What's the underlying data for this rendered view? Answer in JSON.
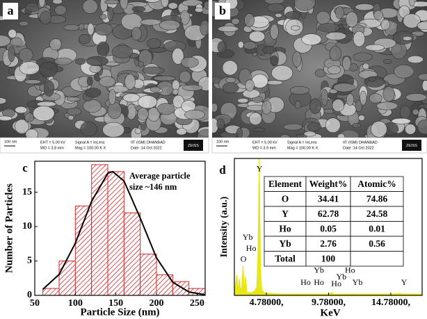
{
  "panels": [
    {
      "label": "a",
      "scale_bar": "100 nm",
      "info": [
        "EHT = 5.00 kV",
        "WD = 3.8 mm",
        "Signal A = InLens",
        "Mag = 100.00 K X",
        "IIT (ISM) DHANBAD",
        "Date :14 Oct 2022"
      ],
      "logo": "ZEISS"
    },
    {
      "label": "b",
      "scale_bar": "100 nm",
      "info": [
        "EHT = 5.00 kV",
        "WD = 3.9 mm",
        "Signal A = InLens",
        "Mag = 100.00 K X",
        "IIT (ISM) DHANBAD",
        "Date :14 Oct 2022"
      ],
      "logo": "ZEISS"
    }
  ],
  "chart_data": [
    {
      "type": "histogram",
      "label": "c",
      "xlabel": "Particle Size (nm)",
      "ylabel": "Number of Particles",
      "bins": [
        60,
        80,
        100,
        120,
        140,
        160,
        180,
        200,
        220,
        240,
        260
      ],
      "values": [
        1,
        5,
        13,
        19,
        18,
        12,
        6,
        3,
        2,
        1
      ],
      "color": "#d62728",
      "fit": {
        "x": [
          60,
          80,
          100,
          120,
          140,
          146,
          160,
          180,
          200,
          220,
          240,
          260
        ],
        "values": [
          0.88,
          3.04,
          7.59,
          13.66,
          17.74,
          18,
          16.62,
          11.23,
          5.47,
          1.92,
          0.49,
          0.09
        ],
        "color": "#000000"
      },
      "annotation": [
        "Average particle",
        "size ~146 nm"
      ],
      "xlim": [
        50,
        260
      ],
      "xticks": [
        50,
        100,
        150,
        200,
        250
      ],
      "ylim": [
        0,
        19.5
      ],
      "yticks": [
        0,
        5,
        10,
        15
      ]
    },
    {
      "type": "area",
      "label": "d",
      "xlabel": "KeV",
      "ylabel": "Intensity (a.u.)",
      "color": "#e6e600",
      "x": [
        2.2,
        2.4,
        2.5,
        2.6,
        2.7,
        2.8,
        2.9,
        3.0,
        3.1,
        3.2,
        3.4,
        3.6,
        3.8,
        4.0,
        4.1,
        4.2,
        4.3,
        4.4,
        4.6,
        5.0,
        6,
        7,
        8,
        9,
        9.8,
        10,
        10.2,
        10.5,
        11,
        12,
        13,
        14,
        15,
        15.5,
        15.7,
        16,
        17.3
      ],
      "values": [
        2,
        15,
        3,
        12,
        4,
        6,
        22,
        3,
        14,
        2,
        2,
        2,
        3,
        6,
        30,
        100,
        20,
        4,
        2,
        1.5,
        1,
        1,
        1,
        1,
        1,
        2,
        1,
        1,
        1,
        1,
        1,
        1,
        1,
        1.5,
        1,
        1,
        1
      ],
      "xlim": [
        2.2,
        17.3
      ],
      "ylim": [
        0,
        100
      ],
      "xticks": [
        {
          "value": 4.78,
          "label": "4.78000,"
        },
        {
          "value": 9.78,
          "label": "9.78000,"
        },
        {
          "value": 14.78,
          "label": "14.78000,"
        }
      ],
      "peak_labels": [
        {
          "label": "O",
          "x": 2.93,
          "y": 26
        },
        {
          "label": "Yb",
          "x": 3.27,
          "y": 42
        },
        {
          "label": "Ho",
          "x": 3.55,
          "y": 34
        },
        {
          "label": "Y",
          "x": 4.22,
          "y": 92
        },
        {
          "label": "Yb",
          "x": 9.0,
          "y": 18
        },
        {
          "label": "Ho",
          "x": 11.5,
          "y": 18
        },
        {
          "label": "Yb",
          "x": 10.8,
          "y": 13
        },
        {
          "label": "Ho",
          "x": 7.93,
          "y": 9
        },
        {
          "label": "Ho",
          "x": 9.0,
          "y": 9
        },
        {
          "label": "Ho",
          "x": 10.4,
          "y": 8
        },
        {
          "label": "Yb",
          "x": 12.1,
          "y": 9
        },
        {
          "label": "Y",
          "x": 15.85,
          "y": 9
        }
      ],
      "table": {
        "header": [
          "Element",
          "Weight%",
          "Atomic%"
        ],
        "rows": [
          [
            "O",
            34.41,
            74.86
          ],
          [
            "Y",
            62.78,
            24.58
          ],
          [
            "Ho",
            0.05,
            0.01
          ],
          [
            "Yb",
            2.76,
            0.56
          ],
          [
            "Total",
            100
          ]
        ]
      }
    }
  ]
}
